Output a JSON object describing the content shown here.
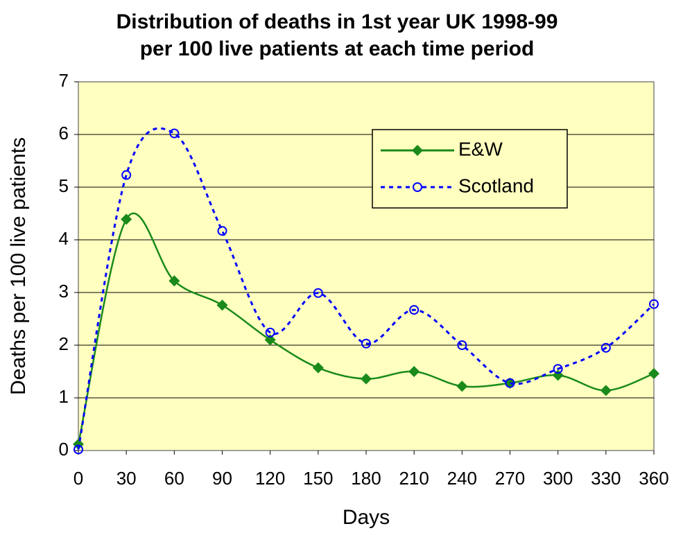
{
  "chart_data": {
    "type": "line",
    "title": "Distribution of deaths in 1st year UK 1998-99",
    "subtitle": "per 100 live patients at each time period",
    "x_label": "Days",
    "y_label": "Deaths per 100 live patients",
    "x": [
      0,
      30,
      60,
      90,
      120,
      150,
      180,
      210,
      240,
      270,
      300,
      330,
      360
    ],
    "series": [
      {
        "name": "E&W",
        "color": "#1a8a1a",
        "marker": "diamond",
        "dash": false,
        "values": [
          0.12,
          4.39,
          3.22,
          2.76,
          2.1,
          1.57,
          1.36,
          1.5,
          1.22,
          1.28,
          1.43,
          1.14,
          1.46
        ]
      },
      {
        "name": "Scotland",
        "color": "#0000ff",
        "marker": "circle",
        "dash": true,
        "values": [
          0.02,
          5.23,
          6.02,
          4.17,
          2.24,
          2.99,
          2.03,
          2.67,
          2.0,
          1.28,
          1.55,
          1.95,
          2.78
        ]
      }
    ],
    "xlim": [
      0,
      360
    ],
    "xticks": [
      0,
      30,
      60,
      90,
      120,
      150,
      180,
      210,
      240,
      270,
      300,
      330,
      360
    ],
    "ylim": [
      0,
      7
    ],
    "yticks": [
      0,
      1,
      2,
      3,
      4,
      5,
      6,
      7
    ],
    "grid": true,
    "legend": "upper right",
    "plot_background": "#ffffc0"
  }
}
